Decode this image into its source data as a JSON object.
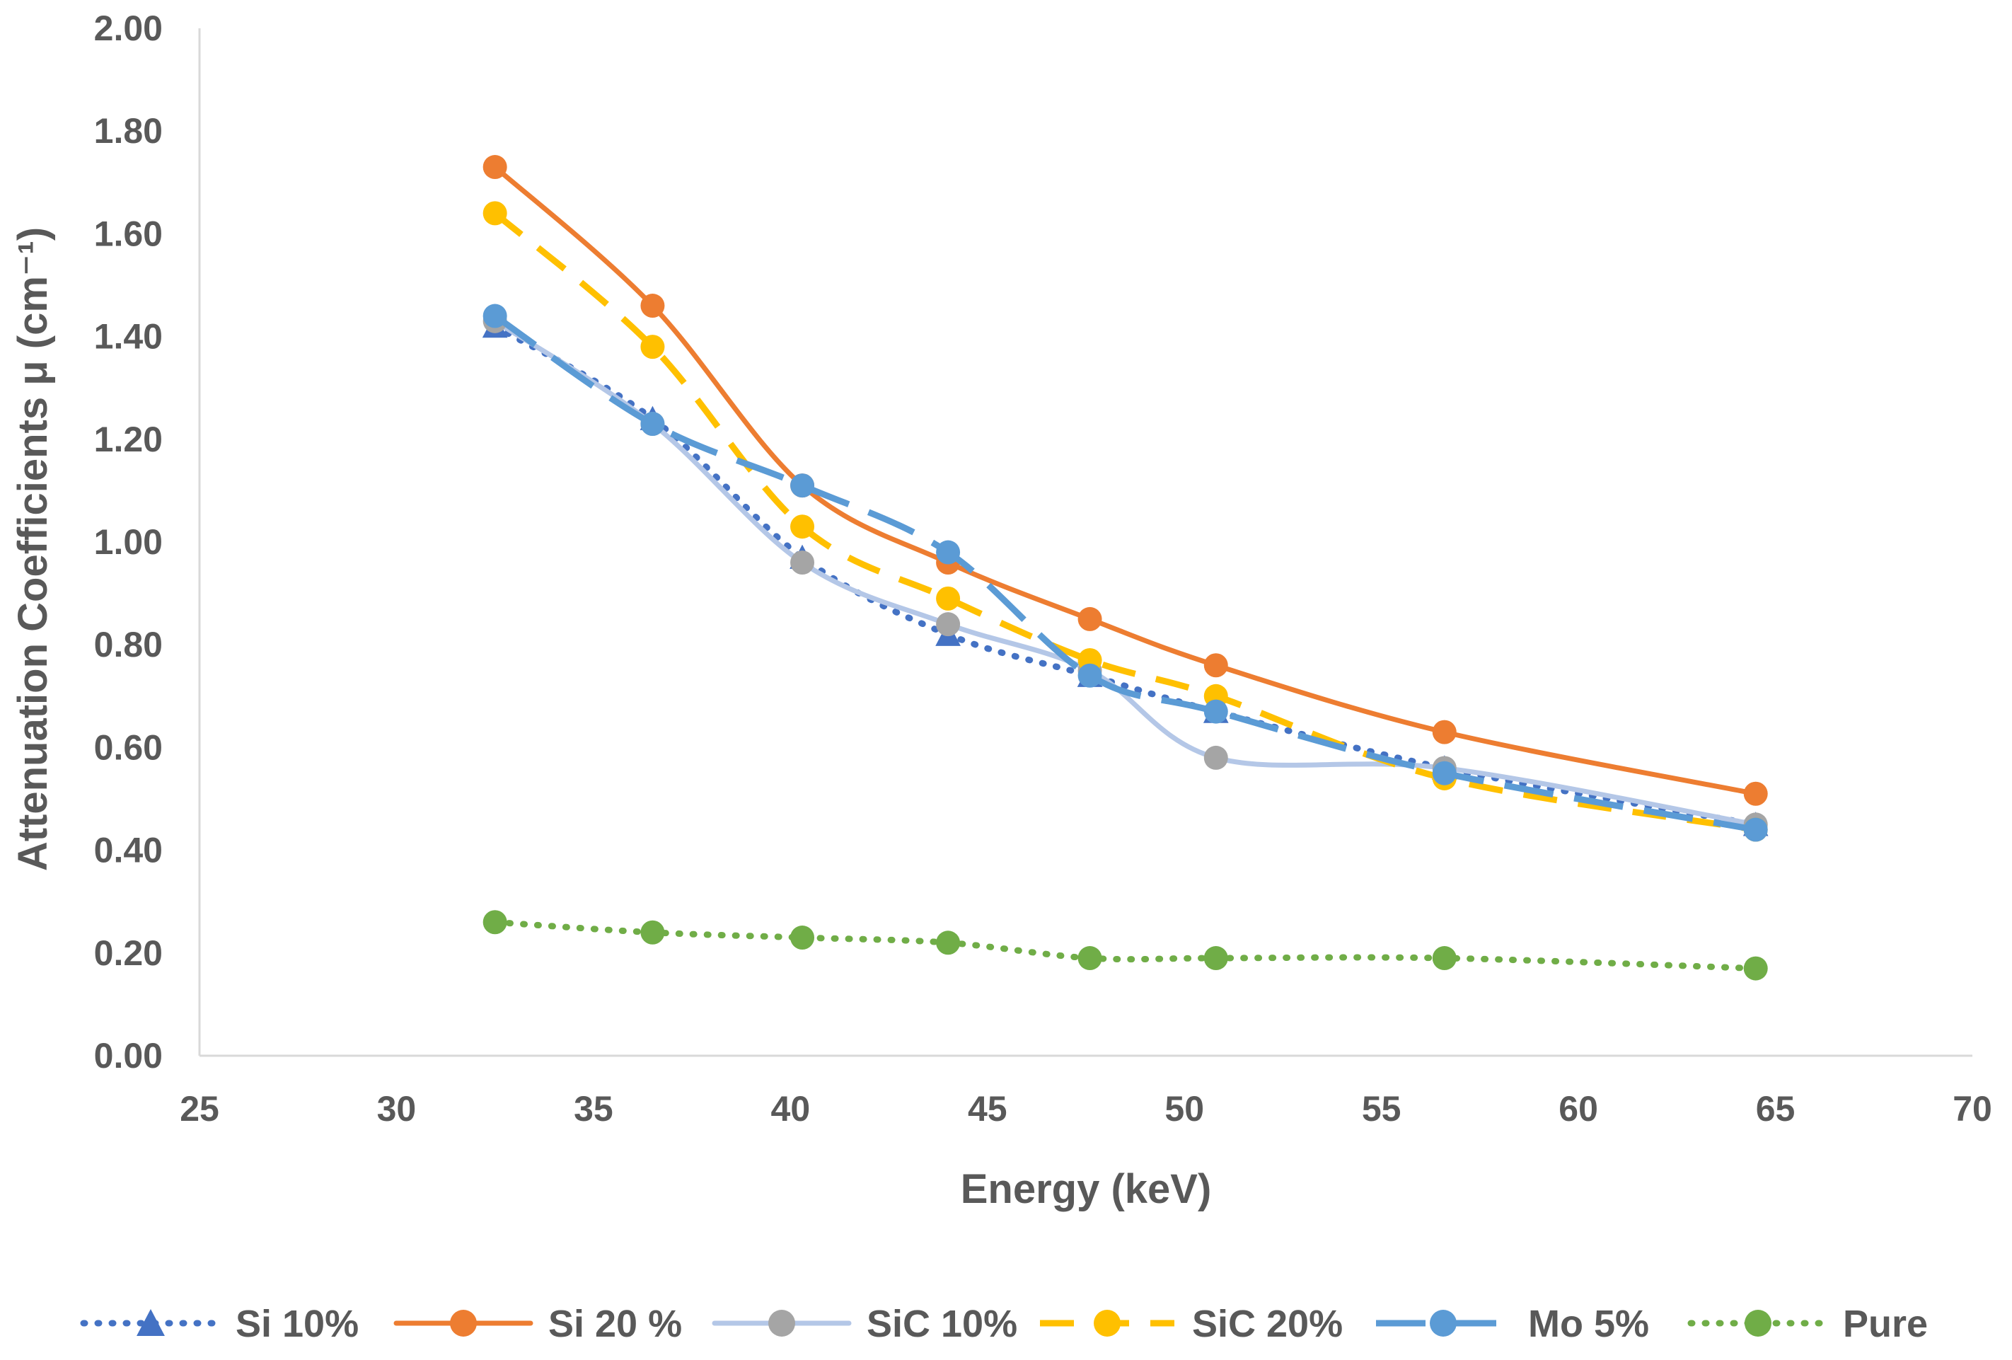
{
  "chart_data": {
    "type": "line",
    "title": "",
    "xlabel": "Energy (keV)",
    "ylabel": "Attenuation Coefficients μ (cm⁻¹)",
    "xlim": [
      25,
      70
    ],
    "ylim": [
      0,
      2
    ],
    "x_ticks": [
      "25",
      "30",
      "35",
      "40",
      "45",
      "50",
      "55",
      "60",
      "65",
      "70"
    ],
    "y_ticks": [
      "0.00",
      "0.20",
      "0.40",
      "0.60",
      "0.80",
      "1.00",
      "1.20",
      "1.40",
      "1.60",
      "1.80",
      "2.00"
    ],
    "x": [
      32.5,
      36.5,
      40.3,
      44.0,
      47.6,
      50.8,
      56.6,
      64.5
    ],
    "legend_position": "bottom",
    "grid": false,
    "series": [
      {
        "name": "Si 10%",
        "values": [
          1.42,
          1.24,
          0.97,
          0.82,
          0.74,
          0.67,
          0.56,
          0.45
        ],
        "color": "#4472C4",
        "marker": "triangle",
        "dash": "dot"
      },
      {
        "name": "Si 20 %",
        "values": [
          1.73,
          1.46,
          1.11,
          0.96,
          0.85,
          0.76,
          0.63,
          0.51
        ],
        "color": "#ED7D31",
        "marker": "circle",
        "dash": "solid"
      },
      {
        "name": "SiC 10%",
        "values": [
          1.43,
          1.23,
          0.96,
          0.84,
          0.75,
          0.58,
          0.56,
          0.45
        ],
        "color": "#A5A5A5",
        "line_color": "#B4C7E7",
        "marker": "circle",
        "dash": "solid"
      },
      {
        "name": "SiC 20%",
        "values": [
          1.64,
          1.38,
          1.03,
          0.89,
          0.77,
          0.7,
          0.54,
          0.44
        ],
        "color": "#FFC000",
        "marker": "circle",
        "dash": "dash"
      },
      {
        "name": "Mo 5%",
        "values": [
          1.44,
          1.23,
          1.11,
          0.98,
          0.74,
          0.67,
          0.55,
          0.44
        ],
        "color": "#5B9BD5",
        "marker": "circle",
        "dash": "longdash"
      },
      {
        "name": "Pure",
        "values": [
          0.26,
          0.24,
          0.23,
          0.22,
          0.19,
          0.19,
          0.19,
          0.17
        ],
        "color": "#70AD47",
        "marker": "circle",
        "dash": "dot"
      }
    ]
  }
}
